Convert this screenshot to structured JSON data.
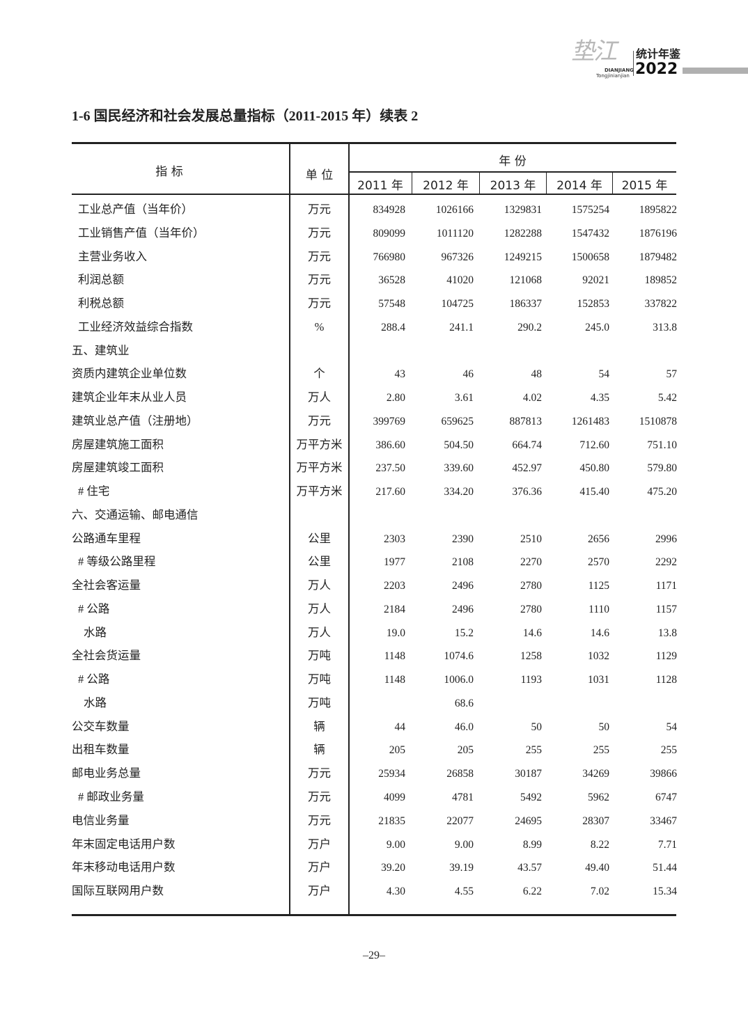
{
  "header": {
    "logo_calligraphy": "垫江",
    "logo_pinyin_1": "DIANJIANG",
    "logo_pinyin_2": "Tongjinianjian",
    "logo_cn": "统计年鉴",
    "logo_year": "2022"
  },
  "title": "1-6  国民经济和社会发展总量指标（2011-2015 年）续表 2",
  "table": {
    "col_indicator": "指  标",
    "col_unit": "单 位",
    "col_year_group": "年  份",
    "years": [
      "2011 年",
      "2012 年",
      "2013 年",
      "2014 年",
      "2015 年"
    ],
    "rows": [
      {
        "label": "工业总产值（当年价）",
        "indent": 1,
        "unit": "万元",
        "values": [
          "834928",
          "1026166",
          "1329831",
          "1575254",
          "1895822"
        ]
      },
      {
        "label": "工业销售产值（当年价）",
        "indent": 1,
        "unit": "万元",
        "values": [
          "809099",
          "1011120",
          "1282288",
          "1547432",
          "1876196"
        ]
      },
      {
        "label": "主营业务收入",
        "indent": 1,
        "unit": "万元",
        "values": [
          "766980",
          "967326",
          "1249215",
          "1500658",
          "1879482"
        ]
      },
      {
        "label": "利润总额",
        "indent": 1,
        "unit": "万元",
        "values": [
          "36528",
          "41020",
          "121068",
          "92021",
          "189852"
        ]
      },
      {
        "label": "利税总额",
        "indent": 1,
        "unit": "万元",
        "values": [
          "57548",
          "104725",
          "186337",
          "152853",
          "337822"
        ]
      },
      {
        "label": "工业经济效益综合指数",
        "indent": 1,
        "unit": "%",
        "values": [
          "288.4",
          "241.1",
          "290.2",
          "245.0",
          "313.8"
        ]
      },
      {
        "label": "五、建筑业",
        "indent": 0,
        "unit": "",
        "values": [
          "",
          "",
          "",
          "",
          ""
        ]
      },
      {
        "label": "资质内建筑企业单位数",
        "indent": 0,
        "unit": "个",
        "values": [
          "43",
          "46",
          "48",
          "54",
          "57"
        ]
      },
      {
        "label": "建筑企业年末从业人员",
        "indent": 0,
        "unit": "万人",
        "values": [
          "2.80",
          "3.61",
          "4.02",
          "4.35",
          "5.42"
        ]
      },
      {
        "label": "建筑业总产值（注册地）",
        "indent": 0,
        "unit": "万元",
        "values": [
          "399769",
          "659625",
          "887813",
          "1261483",
          "1510878"
        ]
      },
      {
        "label": "房屋建筑施工面积",
        "indent": 0,
        "unit": "万平方米",
        "values": [
          "386.60",
          "504.50",
          "664.74",
          "712.60",
          "751.10"
        ]
      },
      {
        "label": "房屋建筑竣工面积",
        "indent": 0,
        "unit": "万平方米",
        "values": [
          "237.50",
          "339.60",
          "452.97",
          "450.80",
          "579.80"
        ]
      },
      {
        "label": "# 住宅",
        "indent": 1,
        "unit": "万平方米",
        "values": [
          "217.60",
          "334.20",
          "376.36",
          "415.40",
          "475.20"
        ]
      },
      {
        "label": "六、交通运输、邮电通信",
        "indent": 0,
        "unit": "",
        "values": [
          "",
          "",
          "",
          "",
          ""
        ]
      },
      {
        "label": "公路通车里程",
        "indent": 0,
        "unit": "公里",
        "values": [
          "2303",
          "2390",
          "2510",
          "2656",
          "2996"
        ]
      },
      {
        "label": "# 等级公路里程",
        "indent": 1,
        "unit": "公里",
        "values": [
          "1977",
          "2108",
          "2270",
          "2570",
          "2292"
        ]
      },
      {
        "label": "全社会客运量",
        "indent": 0,
        "unit": "万人",
        "values": [
          "2203",
          "2496",
          "2780",
          "1125",
          "1171"
        ]
      },
      {
        "label": "# 公路",
        "indent": 1,
        "unit": "万人",
        "values": [
          "2184",
          "2496",
          "2780",
          "1110",
          "1157"
        ]
      },
      {
        "label": "水路",
        "indent": 2,
        "unit": "万人",
        "values": [
          "19.0",
          "15.2",
          "14.6",
          "14.6",
          "13.8"
        ]
      },
      {
        "label": "全社会货运量",
        "indent": 0,
        "unit": "万吨",
        "values": [
          "1148",
          "1074.6",
          "1258",
          "1032",
          "1129"
        ]
      },
      {
        "label": "# 公路",
        "indent": 1,
        "unit": "万吨",
        "values": [
          "1148",
          "1006.0",
          "1193",
          "1031",
          "1128"
        ]
      },
      {
        "label": "水路",
        "indent": 2,
        "unit": "万吨",
        "values": [
          "",
          "68.6",
          "",
          "",
          ""
        ]
      },
      {
        "label": "公交车数量",
        "indent": 0,
        "unit": "辆",
        "values": [
          "44",
          "46.0",
          "50",
          "50",
          "54"
        ]
      },
      {
        "label": "出租车数量",
        "indent": 0,
        "unit": "辆",
        "values": [
          "205",
          "205",
          "255",
          "255",
          "255"
        ]
      },
      {
        "label": "邮电业务总量",
        "indent": 0,
        "unit": "万元",
        "values": [
          "25934",
          "26858",
          "30187",
          "34269",
          "39866"
        ]
      },
      {
        "label": "# 邮政业务量",
        "indent": 1,
        "unit": "万元",
        "values": [
          "4099",
          "4781",
          "5492",
          "5962",
          "6747"
        ]
      },
      {
        "label": "电信业务量",
        "indent": 0,
        "unit": "万元",
        "values": [
          "21835",
          "22077",
          "24695",
          "28307",
          "33467"
        ]
      },
      {
        "label": "年末固定电话用户数",
        "indent": 0,
        "unit": "万户",
        "values": [
          "9.00",
          "9.00",
          "8.99",
          "8.22",
          "7.71"
        ]
      },
      {
        "label": "年末移动电话用户数",
        "indent": 0,
        "unit": "万户",
        "values": [
          "39.20",
          "39.19",
          "43.57",
          "49.40",
          "51.44"
        ]
      },
      {
        "label": "国际互联网用户数",
        "indent": 0,
        "unit": "万户",
        "values": [
          "4.30",
          "4.55",
          "6.22",
          "7.02",
          "15.34"
        ]
      }
    ]
  },
  "page_number": "–29–"
}
